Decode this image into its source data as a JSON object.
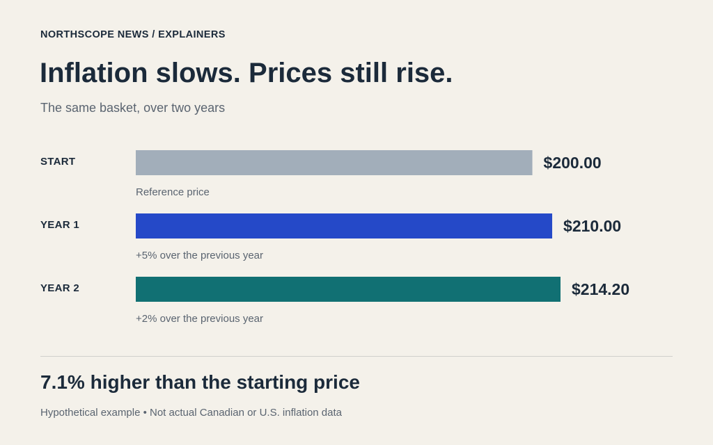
{
  "eyebrow": "NORTHSCOPE NEWS / EXPLAINERS",
  "title": "Inflation slows. Prices still rise.",
  "subtitle": "The same basket, over two years",
  "takeaway": "7.1% higher than the starting price",
  "footnote": "Hypothetical example • Not actual Canadian or U.S. inflation data",
  "chart_data": {
    "type": "bar",
    "orientation": "horizontal",
    "title": "",
    "xlabel": "",
    "ylabel": "",
    "xlim": [
      0,
      214.2
    ],
    "grid": false,
    "categories": [
      "START",
      "YEAR 1",
      "YEAR 2"
    ],
    "values": [
      200.0,
      210.0,
      214.2
    ],
    "value_labels": [
      "$200.00",
      "$210.00",
      "$214.20"
    ],
    "notes": [
      "Reference price",
      "+5% over the previous year",
      "+2% over the previous year"
    ],
    "colors": [
      "#a2aeba",
      "#2549c8",
      "#117073"
    ]
  }
}
